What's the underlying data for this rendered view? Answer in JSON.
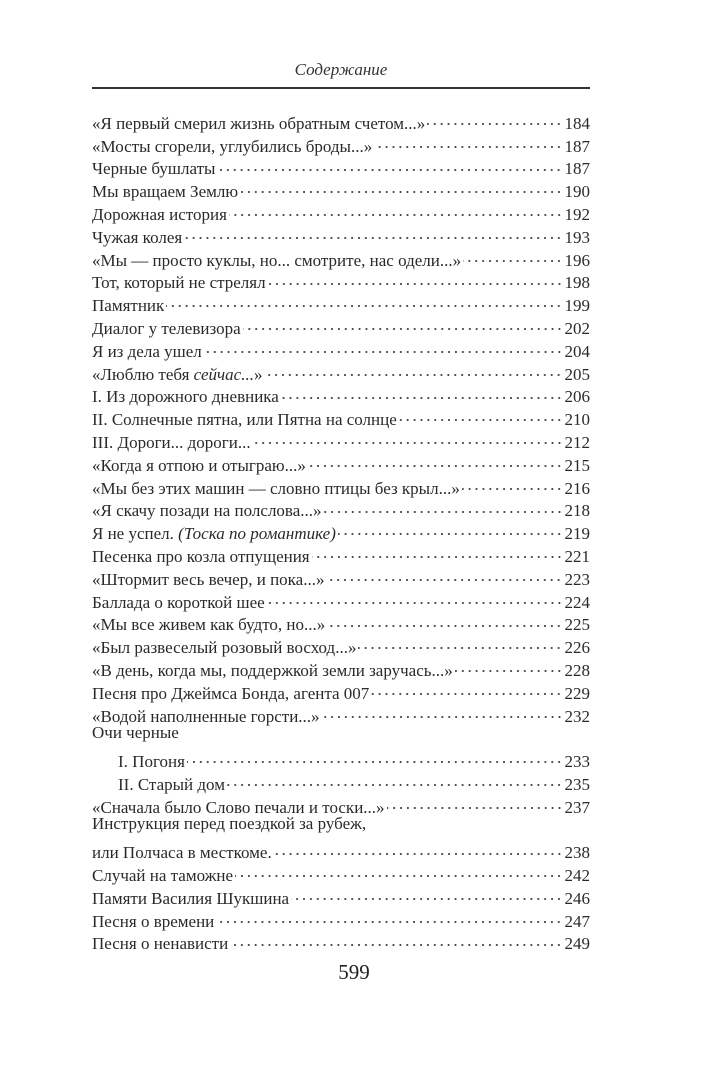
{
  "header": {
    "title": "Содержание"
  },
  "entries": [
    {
      "title": "«Я первый смерил жизнь обратным счетом...»",
      "page": "184"
    },
    {
      "title": "«Мосты сгорели, углубились броды...»",
      "page": "187"
    },
    {
      "title": "Черные бушлаты",
      "page": "187"
    },
    {
      "title": "Мы вращаем Землю",
      "page": "190"
    },
    {
      "title": "Дорожная история",
      "page": "192"
    },
    {
      "title": "Чужая колея",
      "page": "193"
    },
    {
      "title": "«Мы — просто куклы, но... смотрите, нас одели...»",
      "page": "196"
    },
    {
      "title": "Тот, который не стрелял",
      "page": "198"
    },
    {
      "title": "Памятник",
      "page": "199"
    },
    {
      "title": "Диалог у телевизора",
      "page": "202"
    },
    {
      "title": "Я из дела ушел",
      "page": "204"
    },
    {
      "title": "«Люблю тебя ",
      "italic": "сейчас...",
      "tail": "»",
      "page": "205"
    },
    {
      "title": "I. Из дорожного дневника",
      "page": "206"
    },
    {
      "title": "II. Солнечные пятна, или Пятна на солнце",
      "page": "210"
    },
    {
      "title": "III. Дороги... дороги...",
      "page": "212"
    },
    {
      "title": "«Когда я отпою и отыграю...»",
      "page": "215"
    },
    {
      "title": "«Мы без этих машин — словно птицы без крыл...»",
      "page": "216"
    },
    {
      "title": "«Я скачу позади на полслова...»",
      "page": "218"
    },
    {
      "title": "Я не успел. ",
      "italic": "(Тоска по романтике)",
      "page": "219"
    },
    {
      "title": "Песенка про козла отпущения",
      "page": "221"
    },
    {
      "title": "«Штормит весь вечер, и пока...»",
      "page": "223"
    },
    {
      "title": "Баллада о короткой шее",
      "page": "224"
    },
    {
      "title": "«Мы все живем как будто, но...»",
      "page": "225"
    },
    {
      "title": "«Был развеселый розовый восход...»",
      "page": "226"
    },
    {
      "title": "«В день, когда мы, поддержкой земли заручась...»",
      "page": "228"
    },
    {
      "title": "Песня про Джеймса Бонда, агента 007",
      "page": "229"
    },
    {
      "title": "«Водой наполненные горсти...»",
      "page": "232"
    },
    {
      "title": "Очи черные"
    },
    {
      "title": "I. Погоня",
      "page": "233",
      "indent": true
    },
    {
      "title": "II. Старый дом",
      "page": "235",
      "indent": true
    },
    {
      "title": "«Сначала было Слово печали и тоски...»",
      "page": "237"
    },
    {
      "title": "Инструкция перед поездкой за рубеж,"
    },
    {
      "title": "или Полчаса в месткоме.",
      "page": "238"
    },
    {
      "title": "Случай на таможне",
      "page": "242"
    },
    {
      "title": "Памяти Василия Шукшина",
      "page": "246"
    },
    {
      "title": "Песня о времени",
      "page": "247"
    },
    {
      "title": "Песня о ненависти",
      "page": "249"
    }
  ],
  "footer": {
    "page_number": "599"
  }
}
